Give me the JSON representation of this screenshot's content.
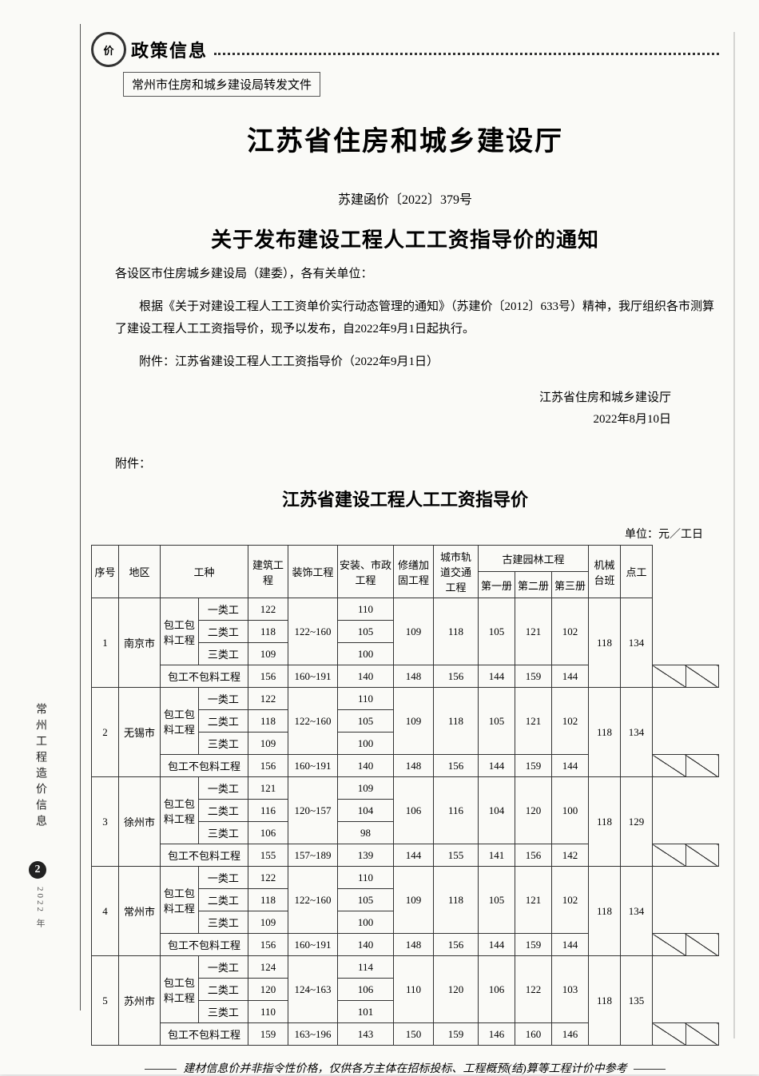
{
  "header": {
    "category": "政策信息",
    "forward_line": "常州市住房和城乡建设局转发文件"
  },
  "doc": {
    "agency_title": "江苏省住房和城乡建设厅",
    "doc_number": "苏建函价〔2022〕379号",
    "notice_title": "关于发布建设工程人工工资指导价的通知",
    "addressee": "各设区市住房城乡建设局（建委），各有关单位：",
    "body_line1": "根据《关于对建设工程人工工资单价实行动态管理的通知》（苏建价〔2012〕633号）精神，我厅组织各市测算了建设工程人工工资指导价，现予以发布，自2022年9月1日起执行。",
    "body_line2": "附件：江苏省建设工程人工工资指导价（2022年9月1日）",
    "sign_agency": "江苏省住房和城乡建设厅",
    "sign_date": "2022年8月10日",
    "attach_label": "附件：",
    "table_title": "江苏省建设工程人工工资指导价",
    "unit_label": "单位：元／工日"
  },
  "table": {
    "columns": {
      "seq": "序号",
      "region": "地区",
      "work_type": "工种",
      "construction": "建筑工程",
      "decoration": "装饰工程",
      "install_municipal": "安装、市政工程",
      "repair_reinforce": "修缮加固工程",
      "rail_transit": "城市轨道交通工程",
      "classical_garden": "古建园林工程",
      "garden_vol1": "第一册",
      "garden_vol2": "第二册",
      "garden_vol3": "第三册",
      "machine_shift": "机械台班",
      "spot_labor": "点工"
    },
    "work_kind_parent": "包工包料工程",
    "work_kind_nomat": "包工不包料工程",
    "kinds": [
      "一类工",
      "二类工",
      "三类工"
    ],
    "rows": [
      {
        "seq": "1",
        "region": "南京市",
        "con": [
          "122",
          "118",
          "109"
        ],
        "dec": "122~160",
        "ins": [
          "110",
          "105",
          "100"
        ],
        "rep": "109",
        "rail": "118",
        "g1": "105",
        "g2": "121",
        "g3": "102",
        "mach": "118",
        "spot": "134",
        "nm": {
          "con": "156",
          "dec": "160~191",
          "ins": "140",
          "rep": "148",
          "rail": "156",
          "g1": "144",
          "g2": "159",
          "g3": "144"
        }
      },
      {
        "seq": "2",
        "region": "无锡市",
        "con": [
          "122",
          "118",
          "109"
        ],
        "dec": "122~160",
        "ins": [
          "110",
          "105",
          "100"
        ],
        "rep": "109",
        "rail": "118",
        "g1": "105",
        "g2": "121",
        "g3": "102",
        "mach": "118",
        "spot": "134",
        "nm": {
          "con": "156",
          "dec": "160~191",
          "ins": "140",
          "rep": "148",
          "rail": "156",
          "g1": "144",
          "g2": "159",
          "g3": "144"
        }
      },
      {
        "seq": "3",
        "region": "徐州市",
        "con": [
          "121",
          "116",
          "106"
        ],
        "dec": "120~157",
        "ins": [
          "109",
          "104",
          "98"
        ],
        "rep": "106",
        "rail": "116",
        "g1": "104",
        "g2": "120",
        "g3": "100",
        "mach": "118",
        "spot": "129",
        "nm": {
          "con": "155",
          "dec": "157~189",
          "ins": "139",
          "rep": "144",
          "rail": "155",
          "g1": "141",
          "g2": "156",
          "g3": "142"
        }
      },
      {
        "seq": "4",
        "region": "常州市",
        "con": [
          "122",
          "118",
          "109"
        ],
        "dec": "122~160",
        "ins": [
          "110",
          "105",
          "100"
        ],
        "rep": "109",
        "rail": "118",
        "g1": "105",
        "g2": "121",
        "g3": "102",
        "mach": "118",
        "spot": "134",
        "nm": {
          "con": "156",
          "dec": "160~191",
          "ins": "140",
          "rep": "148",
          "rail": "156",
          "g1": "144",
          "g2": "159",
          "g3": "144"
        }
      },
      {
        "seq": "5",
        "region": "苏州市",
        "con": [
          "124",
          "120",
          "110"
        ],
        "dec": "124~163",
        "ins": [
          "114",
          "106",
          "101"
        ],
        "rep": "110",
        "rail": "120",
        "g1": "106",
        "g2": "122",
        "g3": "103",
        "mach": "118",
        "spot": "135",
        "nm": {
          "con": "159",
          "dec": "163~196",
          "ins": "143",
          "rep": "150",
          "rail": "159",
          "g1": "146",
          "g2": "160",
          "g3": "146"
        }
      }
    ]
  },
  "side": {
    "journal": "常州工程造价信息",
    "badge": "2",
    "year_suffix": "2022 年"
  },
  "footer": "建材信息价并非指令性价格，仅供各方主体在招标投标、工程概预(结)算等工程计价中参考"
}
